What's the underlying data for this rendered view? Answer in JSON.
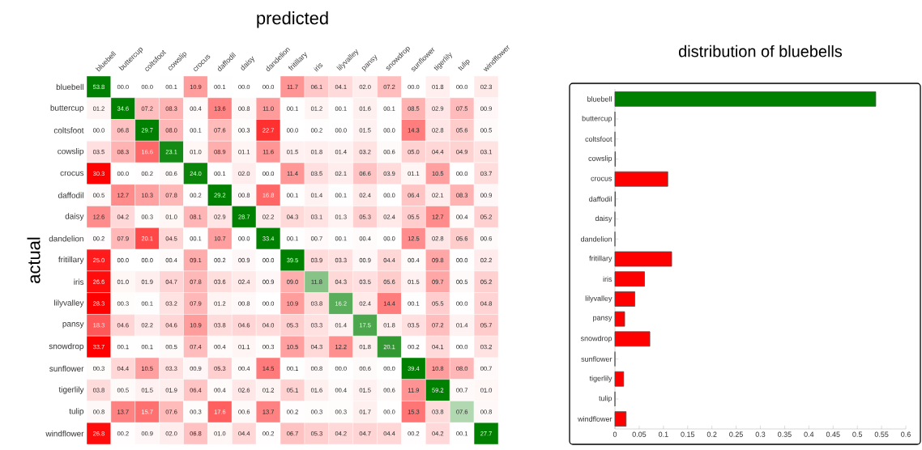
{
  "chart_data": [
    {
      "type": "heatmap",
      "xlabel": "predicted",
      "ylabel": "actual",
      "categories": [
        "bluebell",
        "buttercup",
        "coltsfoot",
        "cowslip",
        "crocus",
        "daffodil",
        "daisy",
        "dandelion",
        "fritillary",
        "iris",
        "lilyvalley",
        "pansy",
        "snowdrop",
        "sunflower",
        "tigerlily",
        "tulip",
        "windflower"
      ],
      "y_categories": [
        "bluebell",
        "buttercup",
        "coltsfoot",
        "cowslip",
        "crocus",
        "daffodil",
        "daisy",
        "dandelion",
        "fritillary",
        "iris",
        "lilyvalley",
        "pansy",
        "snowdrop",
        "sunflower",
        "tigerlily",
        "tulip",
        "windflower"
      ],
      "cells": [
        [
          53.8,
          0.0,
          0.0,
          0.1,
          10.9,
          0.1,
          0.0,
          0.0,
          11.7,
          6.1,
          4.1,
          2.0,
          7.2,
          0.0,
          1.8,
          0.0,
          2.3
        ],
        [
          1.2,
          34.6,
          7.2,
          8.3,
          0.4,
          13.6,
          0.8,
          11.0,
          0.1,
          1.2,
          0.1,
          1.6,
          0.1,
          8.5,
          2.9,
          7.5,
          0.9
        ],
        [
          0.0,
          6.8,
          29.7,
          8.0,
          0.1,
          7.6,
          0.3,
          22.7,
          0.0,
          0.2,
          0.0,
          1.5,
          0.0,
          14.3,
          2.8,
          5.6,
          0.5
        ],
        [
          3.5,
          8.3,
          16.6,
          23.1,
          1.0,
          8.9,
          1.1,
          11.6,
          1.5,
          1.8,
          1.4,
          3.2,
          0.6,
          5.0,
          4.4,
          4.9,
          3.1
        ],
        [
          30.3,
          0.0,
          0.2,
          0.6,
          24.0,
          0.1,
          2.0,
          0.0,
          11.4,
          3.5,
          2.1,
          6.6,
          3.9,
          1.1,
          10.5,
          0.0,
          3.7
        ],
        [
          0.5,
          12.7,
          10.3,
          7.8,
          0.2,
          29.2,
          0.8,
          16.8,
          0.1,
          1.4,
          0.1,
          2.4,
          0.0,
          6.4,
          2.1,
          8.3,
          0.9
        ],
        [
          12.6,
          4.2,
          0.3,
          1.0,
          8.1,
          2.9,
          28.7,
          2.2,
          4.3,
          3.1,
          1.3,
          5.3,
          2.4,
          5.5,
          12.7,
          0.4,
          5.2
        ],
        [
          0.2,
          7.9,
          20.1,
          4.5,
          0.1,
          10.7,
          0.0,
          33.4,
          0.1,
          0.7,
          0.1,
          0.4,
          0.0,
          12.5,
          2.8,
          5.6,
          0.6
        ],
        [
          25.0,
          0.0,
          0.0,
          0.4,
          9.1,
          0.2,
          0.9,
          0.0,
          39.5,
          3.9,
          3.3,
          0.9,
          4.4,
          0.4,
          9.8,
          0.0,
          2.2
        ],
        [
          26.6,
          1.0,
          1.9,
          4.7,
          7.8,
          3.6,
          2.4,
          0.9,
          9.0,
          11.8,
          4.3,
          3.5,
          5.6,
          1.5,
          9.7,
          0.5,
          5.2
        ],
        [
          28.3,
          0.3,
          0.1,
          3.2,
          7.9,
          1.2,
          0.8,
          0.0,
          10.9,
          3.8,
          16.2,
          2.4,
          14.4,
          0.1,
          5.5,
          0.0,
          4.8
        ],
        [
          18.3,
          4.6,
          2.2,
          4.6,
          10.9,
          3.8,
          4.6,
          4.0,
          5.3,
          3.3,
          1.4,
          17.5,
          1.8,
          3.5,
          7.2,
          1.4,
          5.7
        ],
        [
          33.7,
          0.1,
          0.1,
          0.5,
          7.4,
          0.4,
          1.1,
          0.3,
          10.5,
          4.3,
          12.2,
          1.8,
          20.1,
          0.2,
          4.1,
          0.0,
          3.2
        ],
        [
          0.3,
          4.4,
          10.5,
          3.3,
          0.9,
          5.3,
          0.4,
          14.5,
          0.1,
          0.8,
          0.0,
          0.6,
          0.0,
          39.4,
          10.8,
          8.0,
          0.7
        ],
        [
          3.8,
          0.5,
          1.5,
          1.9,
          6.4,
          0.4,
          2.6,
          1.2,
          5.1,
          1.6,
          0.4,
          1.5,
          0.6,
          11.9,
          59.2,
          0.7,
          1.0
        ],
        [
          0.8,
          13.7,
          15.7,
          7.6,
          0.3,
          17.6,
          0.6,
          13.7,
          0.2,
          0.3,
          0.3,
          1.7,
          0.0,
          15.3,
          3.8,
          7.6,
          0.8
        ],
        [
          26.8,
          0.2,
          0.9,
          2.0,
          6.8,
          1.0,
          4.4,
          0.2,
          6.7,
          5.3,
          4.2,
          4.7,
          4.4,
          0.2,
          4.2,
          0.1,
          27.7
        ]
      ],
      "cell_labels": [
        [
          "53.8",
          "00.0",
          "00.0",
          "00.1",
          "10.9",
          "00.1",
          "00.0",
          "00.0",
          "11.7",
          "06.1",
          "04.1",
          "02.0",
          "07.2",
          "00.0",
          "01.8",
          "00.0",
          "02.3"
        ],
        [
          "01.2",
          "34.6",
          "07.2",
          "08.3",
          "00.4",
          "13.6",
          "00.8",
          "11.0",
          "00.1",
          "01.2",
          "00.1",
          "01.6",
          "00.1",
          "08.5",
          "02.9",
          "07.5",
          "00.9"
        ],
        [
          "00.0",
          "06.8",
          "29.7",
          "08.0",
          "00.1",
          "07.6",
          "00.3",
          "22.7",
          "00.0",
          "00.2",
          "00.0",
          "01.5",
          "00.0",
          "14.3",
          "02.8",
          "05.6",
          "00.5"
        ],
        [
          "03.5",
          "08.3",
          "16.6",
          "23.1",
          "01.0",
          "08.9",
          "01.1",
          "11.6",
          "01.5",
          "01.8",
          "01.4",
          "03.2",
          "00.6",
          "05.0",
          "04.4",
          "04.9",
          "03.1"
        ],
        [
          "30.3",
          "00.0",
          "00.2",
          "00.6",
          "24.0",
          "00.1",
          "02.0",
          "00.0",
          "11.4",
          "03.5",
          "02.1",
          "06.6",
          "03.9",
          "01.1",
          "10.5",
          "00.0",
          "03.7"
        ],
        [
          "00.5",
          "12.7",
          "10.3",
          "07.8",
          "00.2",
          "29.2",
          "00.8",
          "16.8",
          "00.1",
          "01.4",
          "00.1",
          "02.4",
          "00.0",
          "06.4",
          "02.1",
          "08.3",
          "00.9"
        ],
        [
          "12.6",
          "04.2",
          "00.3",
          "01.0",
          "08.1",
          "02.9",
          "28.7",
          "02.2",
          "04.3",
          "03.1",
          "01.3",
          "05.3",
          "02.4",
          "05.5",
          "12.7",
          "00.4",
          "05.2"
        ],
        [
          "00.2",
          "07.9",
          "20.1",
          "04.5",
          "00.1",
          "10.7",
          "00.0",
          "33.4",
          "00.1",
          "00.7",
          "00.1",
          "00.4",
          "00.0",
          "12.5",
          "02.8",
          "05.6",
          "00.6"
        ],
        [
          "25.0",
          "00.0",
          "00.0",
          "00.4",
          "09.1",
          "00.2",
          "00.9",
          "00.0",
          "39.5",
          "03.9",
          "03.3",
          "00.9",
          "04.4",
          "00.4",
          "09.8",
          "00.0",
          "02.2"
        ],
        [
          "26.6",
          "01.0",
          "01.9",
          "04.7",
          "07.8",
          "03.6",
          "02.4",
          "00.9",
          "09.0",
          "11.8",
          "04.3",
          "03.5",
          "05.6",
          "01.5",
          "09.7",
          "00.5",
          "05.2"
        ],
        [
          "28.3",
          "00.3",
          "00.1",
          "03.2",
          "07.9",
          "01.2",
          "00.8",
          "00.0",
          "10.9",
          "03.8",
          "16.2",
          "02.4",
          "14.4",
          "00.1",
          "05.5",
          "00.0",
          "04.8"
        ],
        [
          "18.3",
          "04.6",
          "02.2",
          "04.6",
          "10.9",
          "03.8",
          "04.6",
          "04.0",
          "05.3",
          "03.3",
          "01.4",
          "17.5",
          "01.8",
          "03.5",
          "07.2",
          "01.4",
          "05.7"
        ],
        [
          "33.7",
          "00.1",
          "00.1",
          "00.5",
          "07.4",
          "00.4",
          "01.1",
          "00.3",
          "10.5",
          "04.3",
          "12.2",
          "01.8",
          "20.1",
          "00.2",
          "04.1",
          "00.0",
          "03.2"
        ],
        [
          "00.3",
          "04.4",
          "10.5",
          "03.3",
          "00.9",
          "05.3",
          "00.4",
          "14.5",
          "00.1",
          "00.8",
          "00.0",
          "00.6",
          "00.0",
          "39.4",
          "10.8",
          "08.0",
          "00.7"
        ],
        [
          "03.8",
          "00.5",
          "01.5",
          "01.9",
          "06.4",
          "00.4",
          "02.6",
          "01.2",
          "05.1",
          "01.6",
          "00.4",
          "01.5",
          "00.6",
          "11.9",
          "59.2",
          "00.7",
          "01.0"
        ],
        [
          "00.8",
          "13.7",
          "15.7",
          "07.6",
          "00.3",
          "17.6",
          "00.6",
          "13.7",
          "00.2",
          "00.3",
          "00.3",
          "01.7",
          "00.0",
          "15.3",
          "03.8",
          "07.6",
          "00.8"
        ],
        [
          "26.8",
          "00.2",
          "00.9",
          "02.0",
          "06.8",
          "01.0",
          "04.4",
          "00.2",
          "06.7",
          "05.3",
          "04.2",
          "04.7",
          "04.4",
          "00.2",
          "04.2",
          "00.1",
          "27.7"
        ]
      ]
    },
    {
      "type": "bar",
      "orientation": "horizontal",
      "title": "distribution of bluebells",
      "categories": [
        "bluebell",
        "buttercup",
        "coltsfoot",
        "cowslip",
        "crocus",
        "daffodil",
        "daisy",
        "dandelion",
        "fritillary",
        "iris",
        "lilyvalley",
        "pansy",
        "snowdrop",
        "sunflower",
        "tigerlily",
        "tulip",
        "windflower"
      ],
      "values": [
        0.538,
        0.0,
        0.0,
        0.001,
        0.109,
        0.001,
        0.0,
        0.0,
        0.117,
        0.061,
        0.041,
        0.02,
        0.072,
        0.0,
        0.018,
        0.0,
        0.023
      ],
      "colors": [
        "#008000",
        "#ff0000",
        "#ff0000",
        "#ff0000",
        "#ff0000",
        "#ff0000",
        "#ff0000",
        "#ff0000",
        "#ff0000",
        "#ff0000",
        "#ff0000",
        "#ff0000",
        "#ff0000",
        "#ff0000",
        "#ff0000",
        "#ff0000",
        "#ff0000"
      ],
      "xlim": [
        0,
        0.6
      ],
      "xticks": [
        0,
        0.05,
        0.1,
        0.15,
        0.2,
        0.25,
        0.3,
        0.35,
        0.4,
        0.45,
        0.5,
        0.55,
        0.6
      ]
    }
  ]
}
